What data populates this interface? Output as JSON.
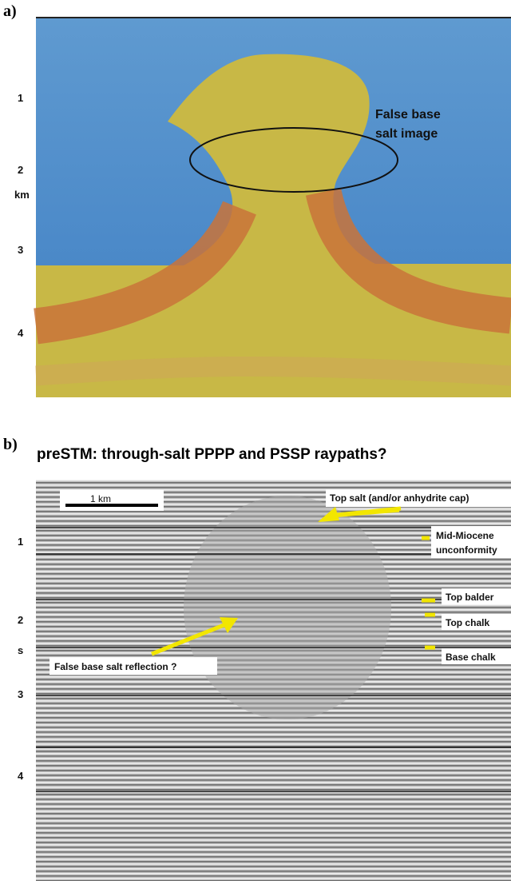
{
  "panel_a": {
    "label": "a)",
    "axis_labels": [
      "1",
      "2",
      "km",
      "3",
      "4"
    ],
    "annotation": [
      "False base",
      "salt image"
    ]
  },
  "panel_b": {
    "label": "b)",
    "title": "preSTM: through-salt PPPP and PSSP raypaths?",
    "scale_bar": "1 km",
    "axis_labels": [
      "1",
      "2",
      "s",
      "3",
      "4"
    ],
    "annotations": {
      "top_salt": "Top salt (and/or anhydrite cap)",
      "mid_miocene": [
        "Mid-Miocene",
        "unconformity"
      ],
      "top_balder": "Top balder",
      "top_chalk": "Top chalk",
      "base_chalk": "Base chalk",
      "false_base": "False base salt reflection ?"
    }
  }
}
